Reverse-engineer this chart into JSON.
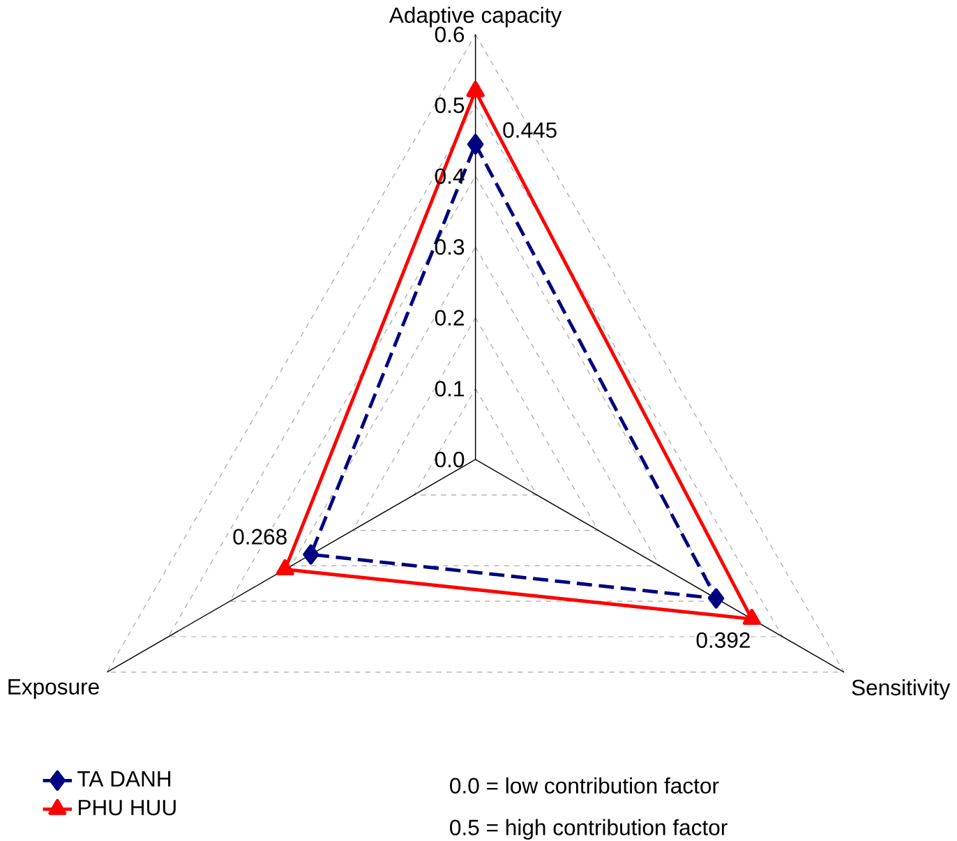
{
  "chart_data": {
    "type": "radar",
    "categories": [
      "Adaptive capacity",
      "Sensitivity",
      "Exposure"
    ],
    "series": [
      {
        "name": "TA DANH",
        "color": "#000080",
        "values": [
          0.445,
          0.392,
          0.268
        ],
        "value_labels": [
          "0.445",
          "0.392",
          "0.268"
        ],
        "marker": "diamond",
        "line_style": "dashed"
      },
      {
        "name": "PHU HUU",
        "color": "#ff0000",
        "values": [
          0.52,
          0.45,
          0.31
        ],
        "marker": "triangle",
        "line_style": "solid"
      }
    ],
    "ylim": [
      0,
      0.6
    ],
    "yticks": [
      "0.0",
      0.1,
      0.2,
      0.3,
      0.4,
      0.5,
      0.6
    ],
    "grid": true,
    "legend": "bottom",
    "annotations": [
      "0.0 = low contribution factor",
      "0.5 = high contribution factor"
    ]
  }
}
